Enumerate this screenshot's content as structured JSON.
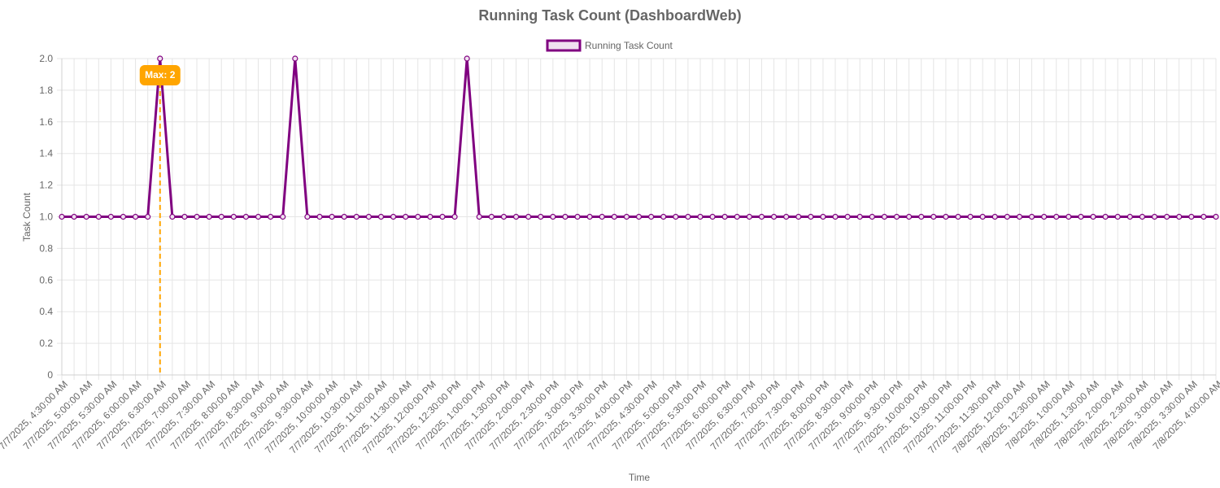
{
  "chart_data": {
    "type": "line",
    "title": "Running Task Count (DashboardWeb)",
    "xlabel": "Time",
    "ylabel": "Task Count",
    "ylim": [
      0,
      2
    ],
    "yticks": [
      0,
      0.2,
      0.4,
      0.6,
      0.8,
      1.0,
      1.2,
      1.4,
      1.6,
      1.8,
      2.0
    ],
    "ytick_labels": [
      "0",
      "0.2",
      "0.4",
      "0.6",
      "0.8",
      "1.0",
      "1.2",
      "1.4",
      "1.6",
      "1.8",
      "2.0"
    ],
    "grid": true,
    "legend_position": "top-center",
    "x_start": "2025-07-07T04:30:00",
    "x_step_minutes": 15,
    "x_labels": [
      "7/7/2025, 4:30:00 AM",
      "7/7/2025, 5:00:00 AM",
      "7/7/2025, 5:30:00 AM",
      "7/7/2025, 6:00:00 AM",
      "7/7/2025, 6:30:00 AM",
      "7/7/2025, 7:00:00 AM",
      "7/7/2025, 7:30:00 AM",
      "7/7/2025, 8:00:00 AM",
      "7/7/2025, 8:30:00 AM",
      "7/7/2025, 9:00:00 AM",
      "7/7/2025, 9:30:00 AM",
      "7/7/2025, 10:00:00 AM",
      "7/7/2025, 10:30:00 AM",
      "7/7/2025, 11:00:00 AM",
      "7/7/2025, 11:30:00 AM",
      "7/7/2025, 12:00:00 PM",
      "7/7/2025, 12:30:00 PM",
      "7/7/2025, 1:00:00 PM",
      "7/7/2025, 1:30:00 PM",
      "7/7/2025, 2:00:00 PM",
      "7/7/2025, 2:30:00 PM",
      "7/7/2025, 3:00:00 PM",
      "7/7/2025, 3:30:00 PM",
      "7/7/2025, 4:00:00 PM",
      "7/7/2025, 4:30:00 PM",
      "7/7/2025, 5:00:00 PM",
      "7/7/2025, 5:30:00 PM",
      "7/7/2025, 6:00:00 PM",
      "7/7/2025, 6:30:00 PM",
      "7/7/2025, 7:00:00 PM",
      "7/7/2025, 7:30:00 PM",
      "7/7/2025, 8:00:00 PM",
      "7/7/2025, 8:30:00 PM",
      "7/7/2025, 9:00:00 PM",
      "7/7/2025, 9:30:00 PM",
      "7/7/2025, 10:00:00 PM",
      "7/7/2025, 10:30:00 PM",
      "7/7/2025, 11:00:00 PM",
      "7/7/2025, 11:30:00 PM",
      "7/8/2025, 12:00:00 AM",
      "7/8/2025, 12:30:00 AM",
      "7/8/2025, 1:00:00 AM",
      "7/8/2025, 1:30:00 AM",
      "7/8/2025, 2:00:00 AM",
      "7/8/2025, 2:30:00 AM",
      "7/8/2025, 3:00:00 AM",
      "7/8/2025, 3:30:00 AM",
      "7/8/2025, 4:00:00 AM"
    ],
    "series": [
      {
        "name": "Running Task Count",
        "color": "#800080",
        "fill": "#f0e0f0",
        "values": [
          1,
          1,
          1,
          1,
          1,
          1,
          1,
          1,
          2,
          1,
          1,
          1,
          1,
          1,
          1,
          1,
          1,
          1,
          1,
          2,
          1,
          1,
          1,
          1,
          1,
          1,
          1,
          1,
          1,
          1,
          1,
          1,
          1,
          2,
          1,
          1,
          1,
          1,
          1,
          1,
          1,
          1,
          1,
          1,
          1,
          1,
          1,
          1,
          1,
          1,
          1,
          1,
          1,
          1,
          1,
          1,
          1,
          1,
          1,
          1,
          1,
          1,
          1,
          1,
          1,
          1,
          1,
          1,
          1,
          1,
          1,
          1,
          1,
          1,
          1,
          1,
          1,
          1,
          1,
          1,
          1,
          1,
          1,
          1,
          1,
          1,
          1,
          1,
          1,
          1,
          1,
          1,
          1,
          1,
          1
        ]
      }
    ],
    "max_annotation": {
      "label": "Max: 2",
      "index": 8,
      "value": 2,
      "color": "#ffa500"
    }
  }
}
